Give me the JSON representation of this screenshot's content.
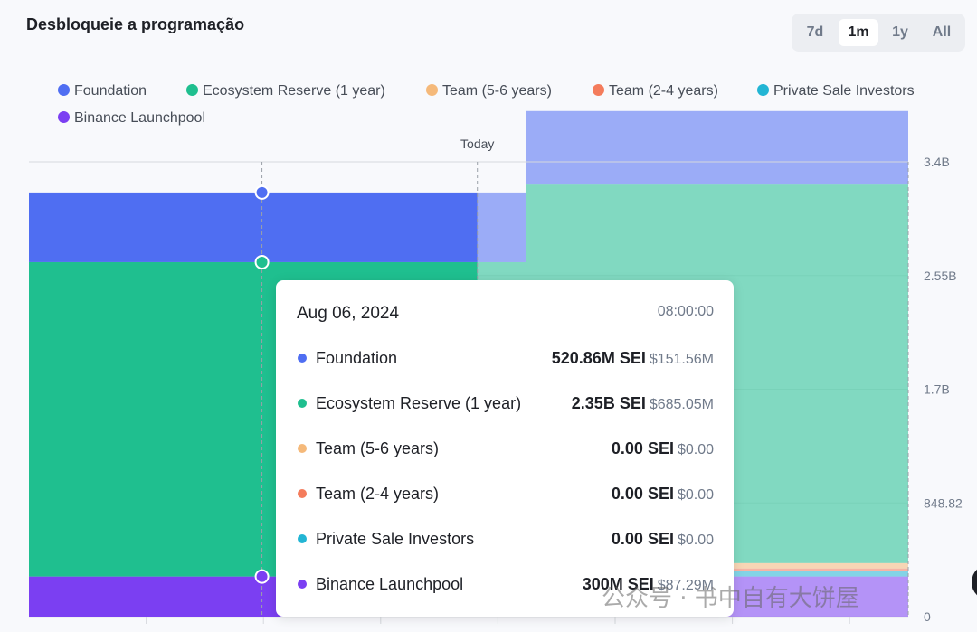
{
  "header": {
    "title": "Desbloqueie a programação",
    "ranges": [
      "7d",
      "1m",
      "1y",
      "All"
    ],
    "active_range": "1m"
  },
  "legend": [
    {
      "label": "Foundation",
      "color": "#4f6ef2"
    },
    {
      "label": "Ecosystem Reserve (1 year)",
      "color": "#1fbf8f"
    },
    {
      "label": "Team (5-6 years)",
      "color": "#f5b97a"
    },
    {
      "label": "Team (2-4 years)",
      "color": "#f47c5c"
    },
    {
      "label": "Private Sale Investors",
      "color": "#22b5d4"
    },
    {
      "label": "Binance Launchpool",
      "color": "#7b3ff2"
    }
  ],
  "chart_data": {
    "type": "area",
    "today_label": "Today",
    "y_ticks": [
      "3.4B",
      "2.55B",
      "1.7B",
      "848.82",
      "0"
    ],
    "ylim": [
      0,
      3.4
    ],
    "y_unit": "B SEI",
    "x_range": [
      0,
      1
    ],
    "today_x": 0.51,
    "step_x": 0.565,
    "series": [
      {
        "name": "Binance Launchpool",
        "color": "#7b3ff2",
        "past": 0.3,
        "future": 0.3
      },
      {
        "name": "Private Sale Investors",
        "color": "#22b5d4",
        "past": 0.0,
        "future": 0.04
      },
      {
        "name": "Team (2-4 years)",
        "color": "#f47c5c",
        "past": 0.0,
        "future": 0.02
      },
      {
        "name": "Team (5-6 years)",
        "color": "#f5b97a",
        "past": 0.0,
        "future": 0.04
      },
      {
        "name": "Ecosystem Reserve (1 year)",
        "color": "#1fbf8f",
        "past": 2.35,
        "future": 2.83
      },
      {
        "name": "Foundation",
        "color": "#4f6ef2",
        "past": 0.52086,
        "future": 0.55
      }
    ],
    "hover_x": 0.265,
    "grid": true
  },
  "tooltip": {
    "date": "Aug 06, 2024",
    "time": "08:00:00",
    "rows": [
      {
        "name": "Foundation",
        "color": "#4f6ef2",
        "amount": "520.86M SEI",
        "usd": "$151.56M"
      },
      {
        "name": "Ecosystem Reserve (1 year)",
        "color": "#1fbf8f",
        "amount": "2.35B SEI",
        "usd": "$685.05M"
      },
      {
        "name": "Team (5-6 years)",
        "color": "#f5b97a",
        "amount": "0.00 SEI",
        "usd": "$0.00"
      },
      {
        "name": "Team (2-4 years)",
        "color": "#f47c5c",
        "amount": "0.00 SEI",
        "usd": "$0.00"
      },
      {
        "name": "Private Sale Investors",
        "color": "#22b5d4",
        "amount": "0.00 SEI",
        "usd": "$0.00"
      },
      {
        "name": "Binance Launchpool",
        "color": "#7b3ff2",
        "amount": "300M SEI",
        "usd": "$87.29M"
      }
    ]
  },
  "watermark": "公众号 · 书中自有大饼屋"
}
